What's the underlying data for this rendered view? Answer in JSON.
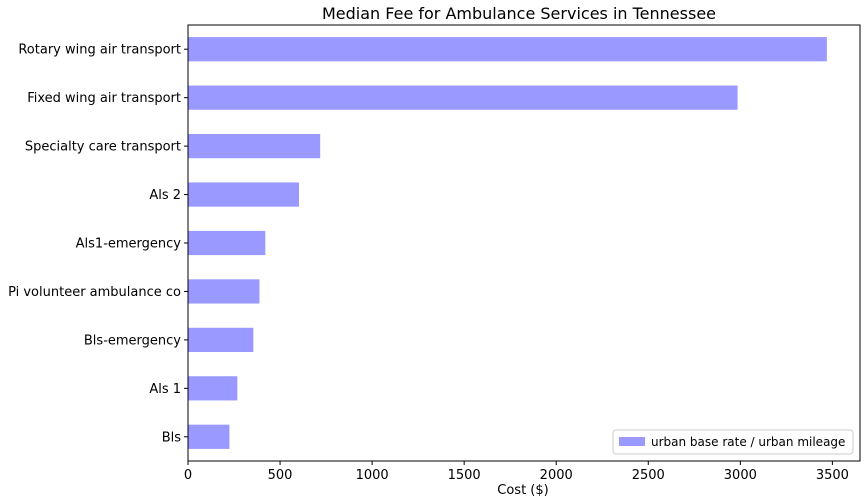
{
  "chart_data": {
    "type": "bar",
    "orientation": "horizontal",
    "title": "Median Fee for Ambulance Services in Tennessee",
    "xlabel": "Cost ($)",
    "ylabel": "",
    "xlim": [
      0,
      3650
    ],
    "xticks": [
      0,
      500,
      1000,
      1500,
      2000,
      2500,
      3000,
      3500
    ],
    "grid": false,
    "legend_position": "bottom-right",
    "bar_color": "#9999ff",
    "categories": [
      "Rotary wing air transport",
      "Fixed wing air transport",
      "Specialty care transport",
      "Als 2",
      "Als1-emergency",
      "Pi volunteer ambulance co",
      "Bls-emergency",
      "Als 1",
      "Bls"
    ],
    "series": [
      {
        "name": "urban base rate / urban mileage",
        "values": [
          3470,
          2985,
          718,
          603,
          420,
          388,
          355,
          268,
          225
        ]
      }
    ]
  }
}
